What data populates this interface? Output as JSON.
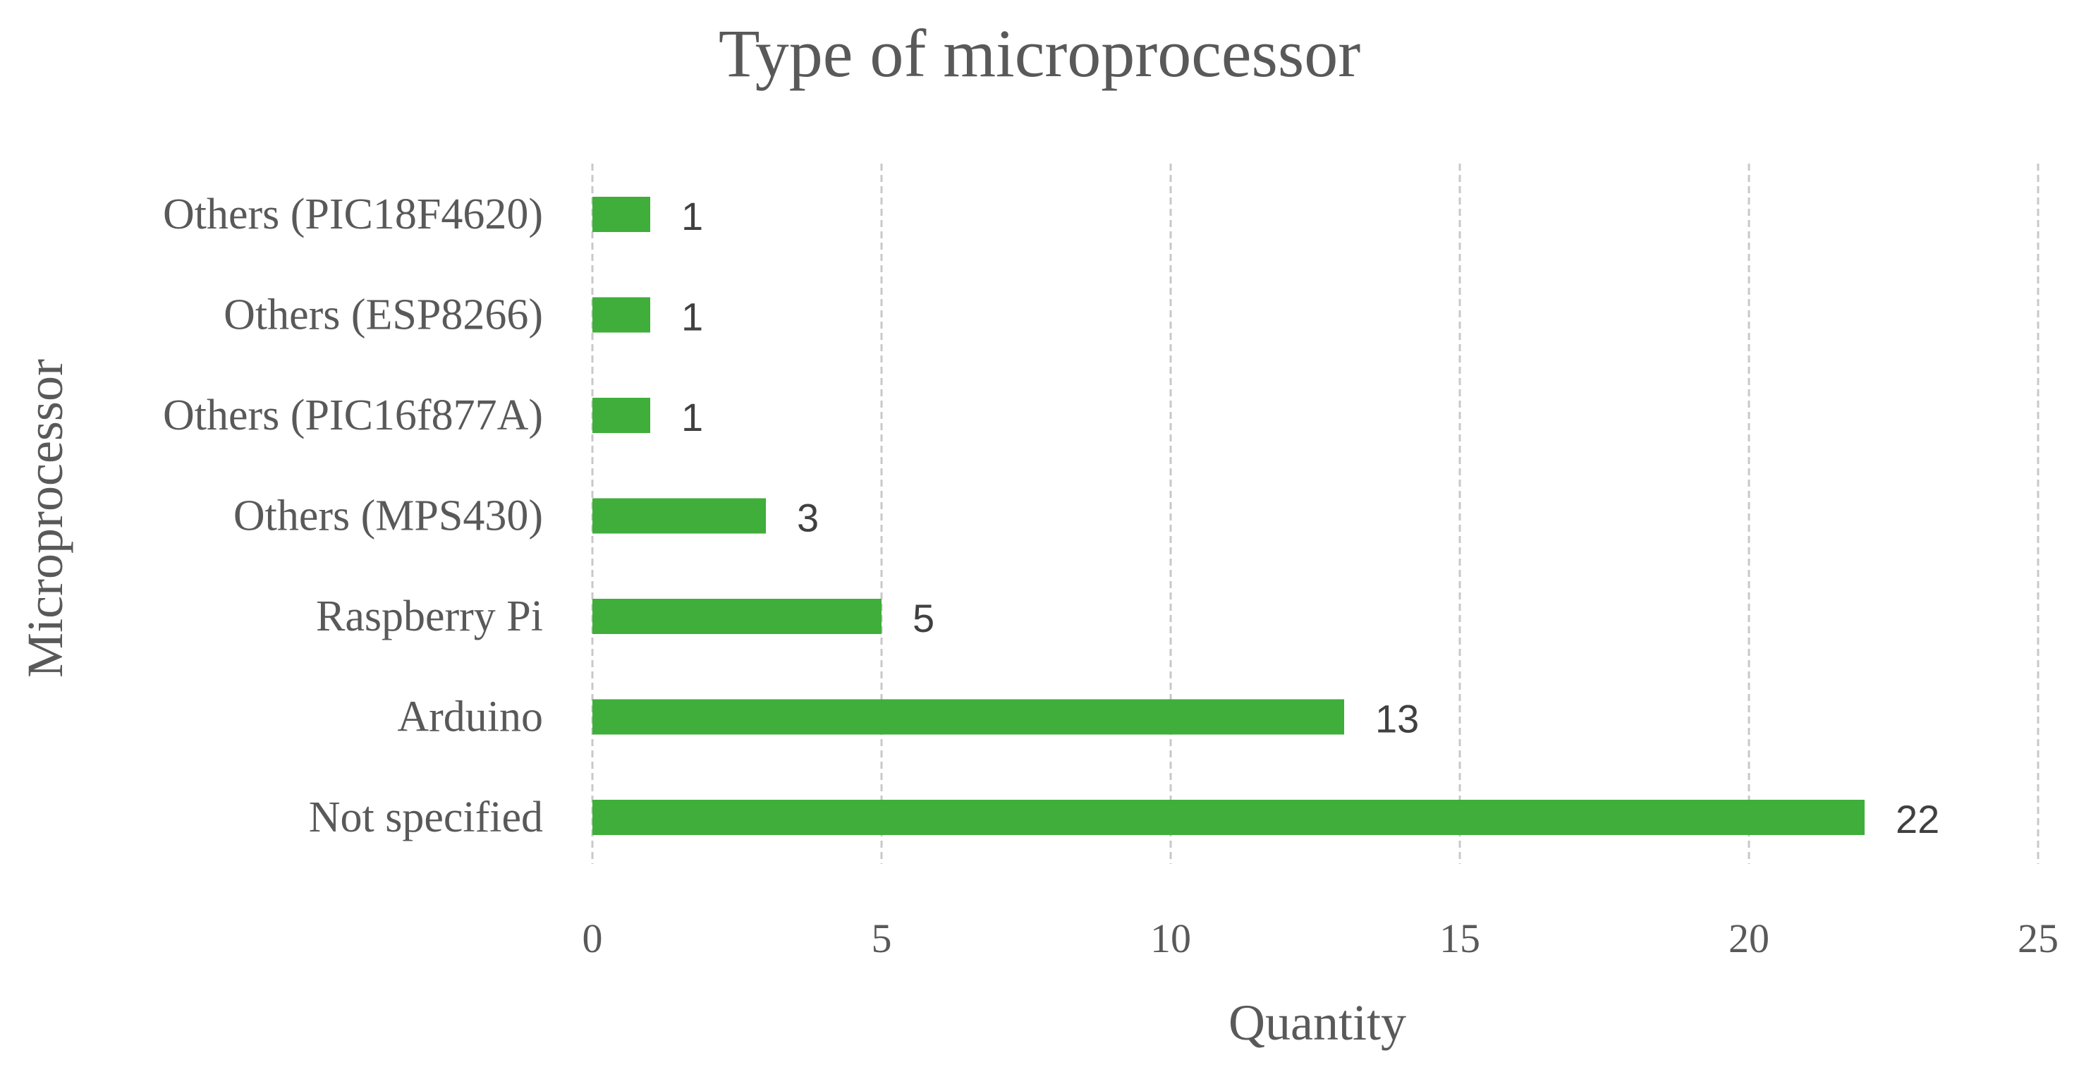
{
  "chart_data": {
    "type": "bar",
    "orientation": "horizontal",
    "title": "Type of microprocessor",
    "xlabel": "Quantity",
    "ylabel": "Microprocessor",
    "categories": [
      "Others (PIC18F4620)",
      "Others (ESP8266)",
      "Others (PIC16f877A)",
      "Others (MPS430)",
      "Raspberry Pi",
      "Arduino",
      "Not specified"
    ],
    "values": [
      1,
      1,
      1,
      3,
      5,
      13,
      22
    ],
    "data_labels": [
      "1",
      "1",
      "1",
      "3",
      "5",
      "13",
      "22"
    ],
    "xlim": [
      0,
      25
    ],
    "xticks": [
      "0",
      "5",
      "10",
      "15",
      "20",
      "25"
    ],
    "grid": "vertical",
    "legend": "none",
    "bar_color": "#3fae3a"
  }
}
